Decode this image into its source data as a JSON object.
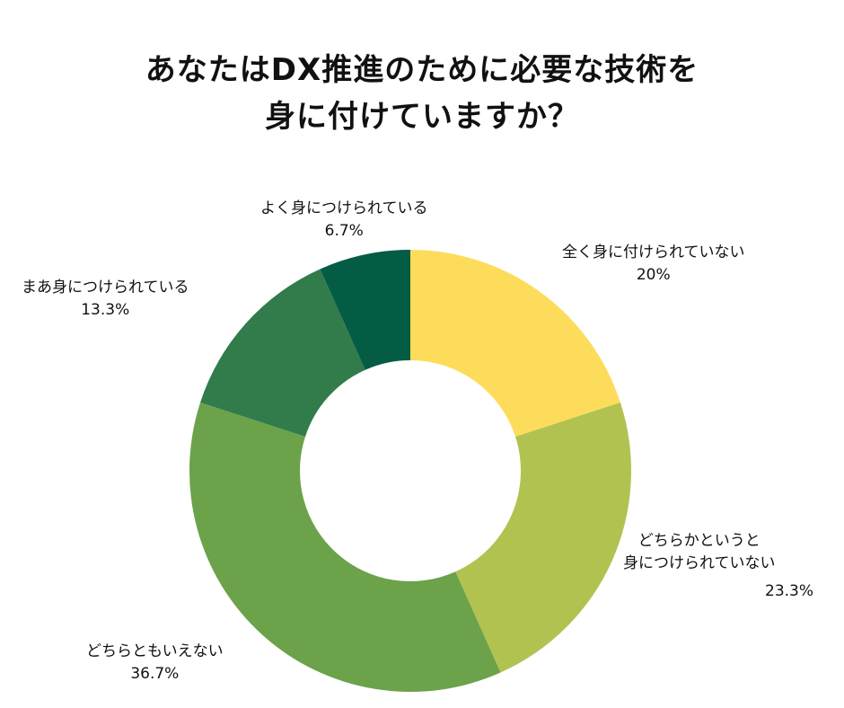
{
  "title_lines": [
    "あなたはDX推進のために必要な技術を",
    "身に付けていますか？"
  ],
  "chart_data": {
    "type": "pie",
    "donut": true,
    "title": "あなたはDX推進のために必要な技術を身に付けていますか？",
    "slices": [
      {
        "label": "全く身に付けられていない",
        "value": 20,
        "value_label": "20%",
        "color": "#FDDC5C"
      },
      {
        "label": "どちらかというと身につけられていない",
        "label_lines": [
          "どちらかというと",
          "身につけられていない"
        ],
        "value": 23.3,
        "value_label": "23.3%",
        "color": "#B2C250"
      },
      {
        "label": "どちらともいえない",
        "value": 36.7,
        "value_label": "36.7%",
        "color": "#6BA24A"
      },
      {
        "label": "まあ身につけられている",
        "value": 13.3,
        "value_label": "13.3%",
        "color": "#317C4A"
      },
      {
        "label": "よく身につけられている",
        "value": 6.7,
        "value_label": "6.7%",
        "color": "#045C45"
      }
    ]
  }
}
